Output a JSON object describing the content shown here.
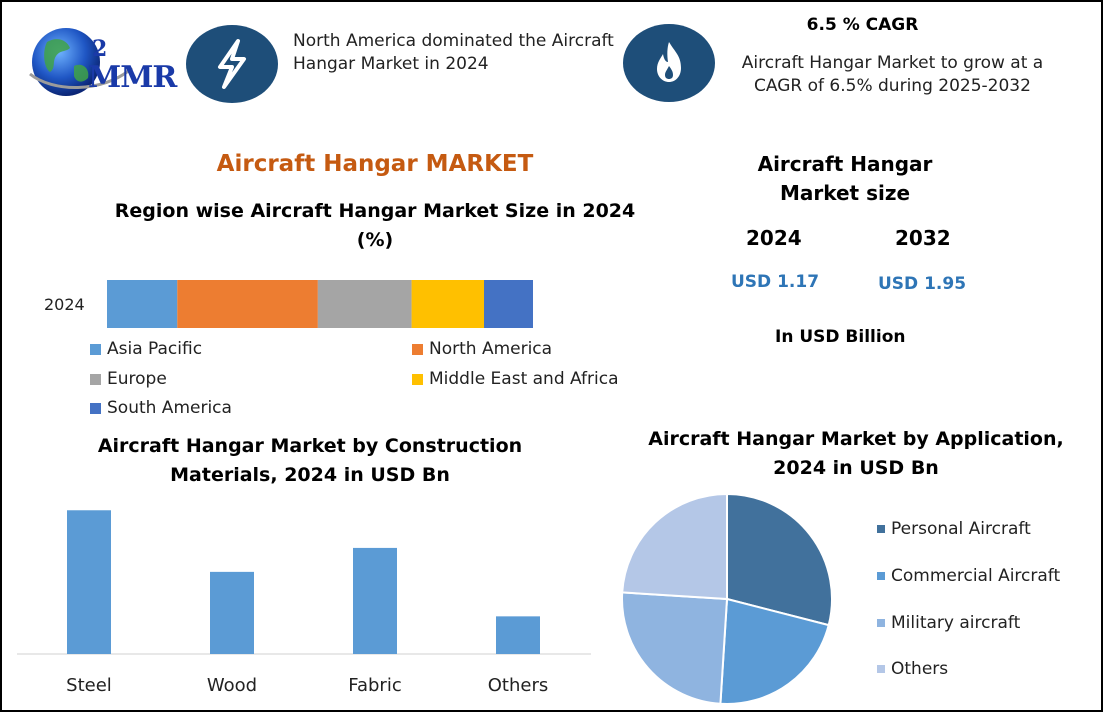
{
  "logo": {
    "text": "MMR",
    "digit": "2"
  },
  "header": {
    "fact1": "North America dominated the Aircraft Hangar Market in 2024",
    "cagr_title": "6.5 % CAGR",
    "cagr_text": "Aircraft Hangar Market to grow at a CAGR of 6.5% during 2025-2032"
  },
  "main_title": "Aircraft Hangar MARKET",
  "size_panel": {
    "title": "Aircraft Hangar Market size",
    "year1": "2024",
    "year2": "2032",
    "value1": "USD 1.17",
    "value2": "USD 1.95",
    "unit": "In USD Billion"
  },
  "colors": {
    "dark_blue": "#1e4e79",
    "title_orange": "#c55a11",
    "value_blue": "#2e75b6",
    "asia": "#5b9bd5",
    "na": "#ed7d31",
    "europe": "#a5a5a5",
    "mea": "#ffc000",
    "sa": "#4472c4",
    "bar": "#5b9bd5"
  },
  "chart_data": [
    {
      "type": "bar",
      "orientation": "horizontal-stacked",
      "title": "Region wise Aircraft Hangar Market Size in 2024 (%)",
      "categories": [
        "2024"
      ],
      "series": [
        {
          "name": "Asia Pacific",
          "values": [
            16.5
          ],
          "color": "#5b9bd5"
        },
        {
          "name": "North America",
          "values": [
            33
          ],
          "color": "#ed7d31"
        },
        {
          "name": "Europe",
          "values": [
            22
          ],
          "color": "#a5a5a5"
        },
        {
          "name": "Middle East and Africa",
          "values": [
            17
          ],
          "color": "#ffc000"
        },
        {
          "name": "South America",
          "values": [
            11.5
          ],
          "color": "#4472c4"
        }
      ],
      "legend": "bottom"
    },
    {
      "type": "bar",
      "title": "Aircraft Hangar Market by Construction Materials, 2024 in USD Bn",
      "categories": [
        "Steel",
        "Wood",
        "Fabric",
        "Others"
      ],
      "values": [
        0.42,
        0.24,
        0.31,
        0.11
      ],
      "ylim": [
        0,
        0.45
      ],
      "grid": false
    },
    {
      "type": "pie",
      "title": "Aircraft Hangar Market by Application, 2024 in USD Bn",
      "labels": [
        "Personal Aircraft",
        "Commercial Aircraft",
        "Military aircraft",
        "Others"
      ],
      "values": [
        29,
        22,
        25,
        24
      ],
      "colors": [
        "#41719c",
        "#5b9bd5",
        "#8fb4e0",
        "#b4c7e7"
      ],
      "legend": "right"
    }
  ]
}
